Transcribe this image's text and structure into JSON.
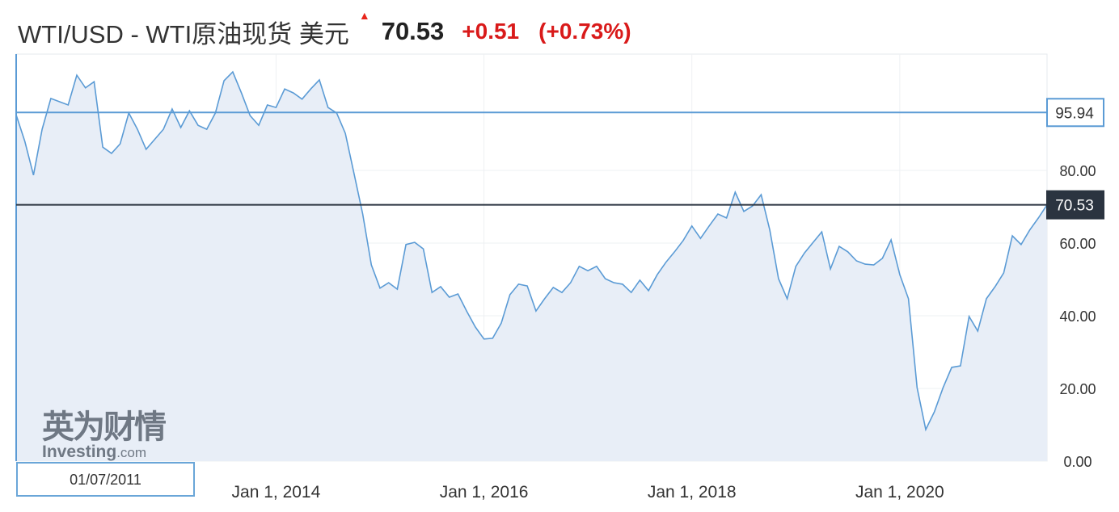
{
  "header": {
    "title": "WTI/USD - WTI原油现货 美元",
    "arrow_icon": "up-arrow",
    "price": "70.53",
    "change": "+0.51",
    "change_pct": "(+0.73%)",
    "change_color": "#d91a1a"
  },
  "watermark": {
    "line1": "英为财情",
    "line2": "Investing",
    "line2_suffix": ".com"
  },
  "date_box": "01/07/2011",
  "chart_data": {
    "type": "area",
    "x_ticks": [
      "Jan 1, 2014",
      "Jan 1, 2016",
      "Jan 1, 2018",
      "Jan 1, 2020"
    ],
    "y_ticks": [
      "0.00",
      "20.00",
      "40.00",
      "60.00",
      "80.00"
    ],
    "ylim": [
      0,
      112
    ],
    "xlim": [
      "2011-07",
      "2021-06"
    ],
    "grid": true,
    "line_color": "#5b9bd5",
    "fill_color": "#e8eef7",
    "reference_lines": [
      {
        "label": "95.94",
        "value": 95.94,
        "color": "#5b9bd5"
      },
      {
        "label": "70.53",
        "value": 70.53,
        "color": "#2b3440"
      }
    ],
    "points": [
      [
        "2011-07",
        95.3
      ],
      [
        "2011-08",
        88
      ],
      [
        "2011-09",
        78.7
      ],
      [
        "2011-10",
        91.3
      ],
      [
        "2011-11",
        99.8
      ],
      [
        "2012-01",
        98
      ],
      [
        "2012-02",
        106.2
      ],
      [
        "2012-03",
        102.7
      ],
      [
        "2012-04",
        104.4
      ],
      [
        "2012-05",
        86.4
      ],
      [
        "2012-06",
        84.7
      ],
      [
        "2012-07",
        87.3
      ],
      [
        "2012-08",
        95.8
      ],
      [
        "2012-09",
        91.3
      ],
      [
        "2012-10",
        85.8
      ],
      [
        "2012-12",
        91.3
      ],
      [
        "2013-01",
        96.9
      ],
      [
        "2013-02",
        91.8
      ],
      [
        "2013-03",
        96.4
      ],
      [
        "2013-04",
        92.4
      ],
      [
        "2013-05",
        91.3
      ],
      [
        "2013-06",
        95.8
      ],
      [
        "2013-07",
        104.7
      ],
      [
        "2013-08",
        107.1
      ],
      [
        "2013-09",
        101.3
      ],
      [
        "2013-10",
        95.1
      ],
      [
        "2013-11",
        92.4
      ],
      [
        "2013-12",
        98
      ],
      [
        "2014-01",
        97.3
      ],
      [
        "2014-02",
        102.4
      ],
      [
        "2014-03",
        101.3
      ],
      [
        "2014-04",
        99.6
      ],
      [
        "2014-05",
        102.4
      ],
      [
        "2014-06",
        104.9
      ],
      [
        "2014-07",
        97.3
      ],
      [
        "2014-08",
        95.8
      ],
      [
        "2014-09",
        90.2
      ],
      [
        "2014-10",
        79.1
      ],
      [
        "2014-11",
        68
      ],
      [
        "2014-12",
        54
      ],
      [
        "2015-01",
        47.6
      ],
      [
        "2015-02",
        49.1
      ],
      [
        "2015-03",
        47.3
      ],
      [
        "2015-04",
        59.6
      ],
      [
        "2015-05",
        60.2
      ],
      [
        "2015-06",
        58.4
      ],
      [
        "2015-07",
        46.4
      ],
      [
        "2015-08",
        48
      ],
      [
        "2015-09",
        45.1
      ],
      [
        "2015-10",
        46
      ],
      [
        "2015-11",
        41.3
      ],
      [
        "2015-12",
        36.9
      ],
      [
        "2016-01",
        33.6
      ],
      [
        "2016-02",
        33.8
      ],
      [
        "2016-03",
        38
      ],
      [
        "2016-04",
        45.8
      ],
      [
        "2016-05",
        48.7
      ],
      [
        "2016-06",
        48.2
      ],
      [
        "2016-07",
        41.3
      ],
      [
        "2016-08",
        44.7
      ],
      [
        "2016-09",
        47.8
      ],
      [
        "2016-10",
        46.4
      ],
      [
        "2016-11",
        49.1
      ],
      [
        "2016-12",
        53.6
      ],
      [
        "2017-01",
        52.4
      ],
      [
        "2017-02",
        53.6
      ],
      [
        "2017-03",
        50.2
      ],
      [
        "2017-04",
        49.1
      ],
      [
        "2017-05",
        48.7
      ],
      [
        "2017-06",
        46.4
      ],
      [
        "2017-07",
        49.8
      ],
      [
        "2017-08",
        46.9
      ],
      [
        "2017-09",
        51.3
      ],
      [
        "2017-10",
        54.7
      ],
      [
        "2017-11",
        57.6
      ],
      [
        "2017-12",
        60.7
      ],
      [
        "2018-01",
        64.7
      ],
      [
        "2018-02",
        61.3
      ],
      [
        "2018-03",
        64.7
      ],
      [
        "2018-04",
        68
      ],
      [
        "2018-05",
        66.9
      ],
      [
        "2018-06",
        74
      ],
      [
        "2018-07",
        68.7
      ],
      [
        "2018-08",
        70.2
      ],
      [
        "2018-09",
        73.3
      ],
      [
        "2018-10",
        63.6
      ],
      [
        "2018-11",
        50.2
      ],
      [
        "2018-12",
        44.7
      ],
      [
        "2019-01",
        53.6
      ],
      [
        "2019-02",
        57.3
      ],
      [
        "2019-03",
        60.2
      ],
      [
        "2019-04",
        63.1
      ],
      [
        "2019-05",
        52.9
      ],
      [
        "2019-06",
        59.1
      ],
      [
        "2019-07",
        57.6
      ],
      [
        "2019-08",
        55.1
      ],
      [
        "2019-09",
        54.2
      ],
      [
        "2019-10",
        54
      ],
      [
        "2019-11",
        55.8
      ],
      [
        "2019-12",
        60.9
      ],
      [
        "2020-01",
        51.3
      ],
      [
        "2020-02",
        44.7
      ],
      [
        "2020-03",
        20.2
      ],
      [
        "2020-04",
        8.7
      ],
      [
        "2020-05",
        13.6
      ],
      [
        "2020-06",
        20.2
      ],
      [
        "2020-07",
        25.8
      ],
      [
        "2020-08",
        26.2
      ],
      [
        "2020-09",
        39.8
      ],
      [
        "2020-10",
        35.8
      ],
      [
        "2020-11",
        44.7
      ],
      [
        "2020-12",
        48
      ],
      [
        "2021-01",
        51.8
      ],
      [
        "2021-02",
        62
      ],
      [
        "2021-03",
        59.6
      ],
      [
        "2021-04",
        63.6
      ],
      [
        "2021-05",
        66.9
      ],
      [
        "2021-06",
        70.53
      ]
    ]
  }
}
